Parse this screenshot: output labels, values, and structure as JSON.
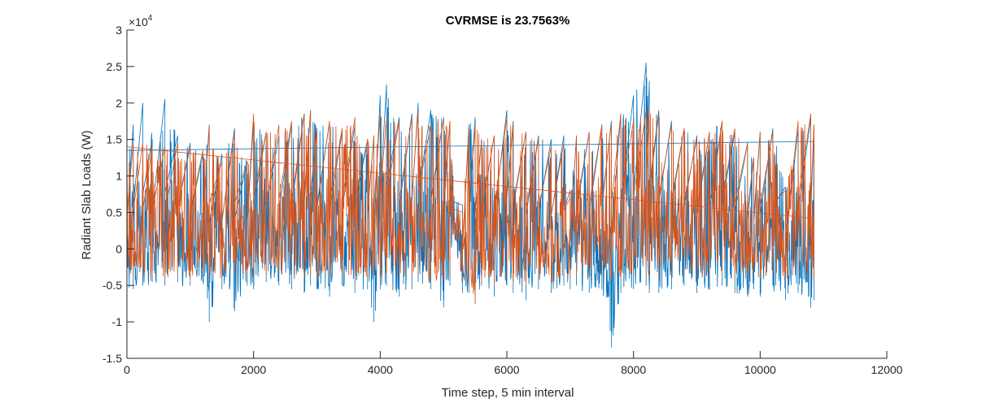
{
  "chart_data": {
    "type": "line",
    "title": "CVRMSE is 23.7563%",
    "xlabel": "Time step, 5 min interval",
    "ylabel": "Radiant Slab Loads (W)",
    "xlim": [
      0,
      12000
    ],
    "ylim": [
      -15000,
      30000
    ],
    "x_ticks": [
      0,
      2000,
      4000,
      6000,
      8000,
      10000,
      12000
    ],
    "y_ticks": [
      -1.5,
      -1,
      -0.5,
      0,
      0.5,
      1,
      1.5,
      2,
      2.5,
      3
    ],
    "y_multiplier": "×10",
    "y_multiplier_exponent": "4",
    "grid": false,
    "legend": "none",
    "series": [
      {
        "color": "#0072BD",
        "x": [
          0,
          100,
          250,
          400,
          600,
          800,
          1000,
          1200,
          1300,
          1500,
          1700,
          1900,
          2000,
          2200,
          2400,
          2600,
          2800,
          2900,
          3000,
          3200,
          3400,
          3600,
          3800,
          3900,
          4000,
          4100,
          4300,
          4500,
          4600,
          4800,
          5000,
          5100,
          5150,
          5300,
          5400,
          5500,
          5600,
          5800,
          6000,
          6100,
          6300,
          6500,
          6700,
          6900,
          7000,
          7100,
          7300,
          7500,
          7650,
          7800,
          8000,
          8200,
          8250,
          8400,
          8600,
          8800,
          9000,
          9200,
          9400,
          9600,
          9800,
          9900,
          10000,
          10200,
          10400,
          10600,
          10800,
          10850
        ],
        "upper": [
          13500,
          17000,
          20000,
          15000,
          20500,
          15500,
          14500,
          13000,
          17000,
          13000,
          16500,
          12000,
          17500,
          16000,
          15500,
          17000,
          18500,
          19000,
          16500,
          17500,
          16000,
          17000,
          15000,
          15500,
          21000,
          22500,
          18000,
          18500,
          20000,
          19000,
          18000,
          17500,
          10000,
          6000,
          17000,
          18000,
          15000,
          15500,
          19000,
          17500,
          16000,
          15500,
          15000,
          15500,
          8000,
          15500,
          16000,
          17000,
          17500,
          18500,
          21000,
          25500,
          23000,
          19000,
          17500,
          16500,
          15500,
          16000,
          17500,
          16000,
          14500,
          12500,
          16000,
          16500,
          8500,
          16500,
          18000,
          17000
        ],
        "lower": [
          -6000,
          -5500,
          -5000,
          -4500,
          -5000,
          -4500,
          -5000,
          -4500,
          -10000,
          -5500,
          -8500,
          -5000,
          -5500,
          -4500,
          -5000,
          -5500,
          -6000,
          -5000,
          -5500,
          -6500,
          -5000,
          -6000,
          -5500,
          -10000,
          -5500,
          -5000,
          -6500,
          -5500,
          -4500,
          -5500,
          -8000,
          -5000,
          3000,
          -6000,
          -6000,
          -7500,
          -5000,
          -6500,
          -5000,
          -6000,
          -7000,
          -5500,
          -6000,
          -5000,
          -5500,
          -5000,
          -6000,
          -5500,
          -13500,
          -6000,
          -5500,
          -5000,
          -6000,
          -6000,
          -5500,
          -5000,
          -6000,
          -5500,
          -5000,
          -6000,
          -6500,
          -5500,
          -6500,
          -5000,
          -7000,
          -6000,
          -8000,
          -7000
        ]
      },
      {
        "color": "#D95319",
        "x": [
          0,
          100,
          250,
          400,
          600,
          800,
          1000,
          1200,
          1300,
          1500,
          1700,
          1900,
          2000,
          2200,
          2400,
          2600,
          2800,
          2900,
          3000,
          3200,
          3400,
          3600,
          3800,
          3900,
          4000,
          4100,
          4300,
          4500,
          4600,
          4800,
          5000,
          5100,
          5150,
          5300,
          5400,
          5500,
          5600,
          5800,
          6000,
          6100,
          6300,
          6500,
          6700,
          6900,
          7000,
          7100,
          7300,
          7500,
          7650,
          7800,
          8000,
          8200,
          8250,
          8400,
          8600,
          8800,
          9000,
          9200,
          9400,
          9600,
          9800,
          9900,
          10000,
          10200,
          10400,
          10600,
          10800,
          10850
        ],
        "upper": [
          14000,
          14500,
          14500,
          14000,
          14000,
          14500,
          14000,
          13500,
          16500,
          12000,
          16000,
          12000,
          18500,
          16000,
          17000,
          17500,
          18500,
          19000,
          16000,
          17500,
          16500,
          18000,
          15000,
          15500,
          18500,
          18000,
          17500,
          18000,
          19000,
          17000,
          18000,
          17500,
          9000,
          5000,
          16500,
          17000,
          15000,
          15500,
          18000,
          17000,
          16000,
          15000,
          14000,
          14500,
          7000,
          15500,
          16000,
          17000,
          17000,
          18500,
          17500,
          19000,
          19500,
          18500,
          17000,
          16500,
          15000,
          16000,
          17500,
          16500,
          14500,
          12500,
          16000,
          16000,
          8000,
          17500,
          18500,
          17000
        ],
        "lower": [
          -4500,
          -4000,
          -4000,
          -3500,
          -4000,
          -3500,
          -4000,
          -3500,
          -4000,
          -4000,
          -3500,
          -3500,
          -4000,
          -3500,
          -3500,
          -4000,
          -4000,
          -3500,
          -4000,
          -4000,
          -3500,
          -4000,
          -4000,
          -4000,
          -4000,
          -3500,
          -4000,
          -3500,
          -3500,
          -4000,
          -4500,
          -3500,
          2000,
          -4500,
          -5000,
          -7500,
          -4500,
          -5000,
          -4000,
          -4500,
          -5000,
          -4000,
          -4500,
          -4000,
          -4000,
          -3500,
          -4000,
          -4000,
          -4000,
          -4000,
          -3500,
          -3500,
          -4000,
          -4000,
          -3500,
          -3500,
          -4000,
          -3500,
          -3500,
          -4000,
          -4000,
          -3500,
          -4000,
          -3500,
          -4500,
          -3500,
          -4500,
          -4000
        ]
      }
    ]
  }
}
